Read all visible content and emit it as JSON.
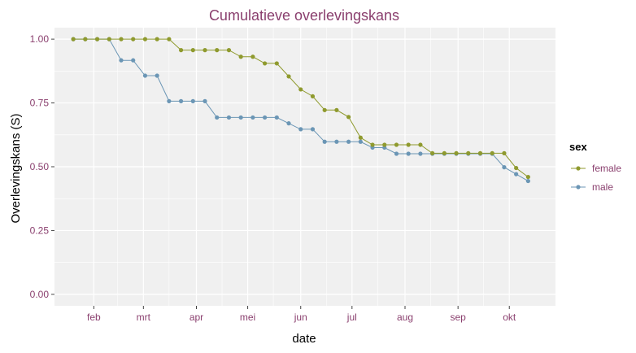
{
  "chart_data": {
    "type": "line",
    "title": "Cumulatieve overlevingskans",
    "xlabel": "date",
    "ylabel": "Overlevingskans (S)",
    "ylim": [
      0,
      1
    ],
    "y_ticks": [
      0,
      0.25,
      0.5,
      0.75,
      1
    ],
    "y_tick_labels": [
      "0.00",
      "0.25",
      "0.50",
      "0.75",
      "1.00"
    ],
    "x_ticks": [
      "2016-02-01",
      "2016-03-01",
      "2016-04-01",
      "2016-05-01",
      "2016-06-01",
      "2016-07-01",
      "2016-08-01",
      "2016-09-01",
      "2016-10-01"
    ],
    "x_tick_labels": [
      "feb",
      "mrt",
      "apr",
      "mei",
      "jun",
      "jul",
      "aug",
      "sep",
      "okt"
    ],
    "xlim": [
      "2016-01-09",
      "2016-10-28"
    ],
    "grid": true,
    "legend": {
      "title": "sex",
      "position": "right"
    },
    "series": [
      {
        "name": "female",
        "color": "#8f9a2e",
        "x": [
          "2016-01-20",
          "2016-01-27",
          "2016-02-03",
          "2016-02-10",
          "2016-02-17",
          "2016-02-24",
          "2016-03-02",
          "2016-03-09",
          "2016-03-16",
          "2016-03-23",
          "2016-03-30",
          "2016-04-06",
          "2016-04-13",
          "2016-04-20",
          "2016-04-27",
          "2016-05-04",
          "2016-05-11",
          "2016-05-18",
          "2016-05-25",
          "2016-06-01",
          "2016-06-08",
          "2016-06-15",
          "2016-06-22",
          "2016-06-29",
          "2016-07-06",
          "2016-07-13",
          "2016-07-20",
          "2016-07-27",
          "2016-08-03",
          "2016-08-10",
          "2016-08-17",
          "2016-08-24",
          "2016-08-31",
          "2016-09-07",
          "2016-09-14",
          "2016-09-21",
          "2016-09-28",
          "2016-10-05",
          "2016-10-12"
        ],
        "values": [
          1.0,
          1.0,
          1.0,
          1.0,
          1.0,
          1.0,
          1.0,
          1.0,
          1.0,
          0.957,
          0.957,
          0.957,
          0.957,
          0.957,
          0.931,
          0.931,
          0.905,
          0.905,
          0.854,
          0.803,
          0.776,
          0.722,
          0.722,
          0.695,
          0.614,
          0.586,
          0.586,
          0.586,
          0.586,
          0.586,
          0.553,
          0.553,
          0.553,
          0.553,
          0.553,
          0.553,
          0.553,
          0.495,
          0.46
        ]
      },
      {
        "name": "male",
        "color": "#6b96b5",
        "x": [
          "2016-01-20",
          "2016-01-27",
          "2016-02-03",
          "2016-02-10",
          "2016-02-17",
          "2016-02-24",
          "2016-03-02",
          "2016-03-09",
          "2016-03-16",
          "2016-03-23",
          "2016-03-30",
          "2016-04-06",
          "2016-04-13",
          "2016-04-20",
          "2016-04-27",
          "2016-05-04",
          "2016-05-11",
          "2016-05-18",
          "2016-05-25",
          "2016-06-01",
          "2016-06-08",
          "2016-06-15",
          "2016-06-22",
          "2016-06-29",
          "2016-07-06",
          "2016-07-13",
          "2016-07-20",
          "2016-07-27",
          "2016-08-03",
          "2016-08-10",
          "2016-08-17",
          "2016-08-24",
          "2016-08-31",
          "2016-09-07",
          "2016-09-14",
          "2016-09-21",
          "2016-09-28",
          "2016-10-05",
          "2016-10-12"
        ],
        "values": [
          1.0,
          1.0,
          1.0,
          1.0,
          0.917,
          0.917,
          0.857,
          0.857,
          0.757,
          0.757,
          0.757,
          0.757,
          0.693,
          0.693,
          0.693,
          0.693,
          0.693,
          0.693,
          0.67,
          0.647,
          0.647,
          0.598,
          0.598,
          0.598,
          0.598,
          0.575,
          0.575,
          0.551,
          0.551,
          0.551,
          0.551,
          0.551,
          0.551,
          0.551,
          0.551,
          0.551,
          0.498,
          0.471,
          0.444
        ]
      }
    ]
  }
}
